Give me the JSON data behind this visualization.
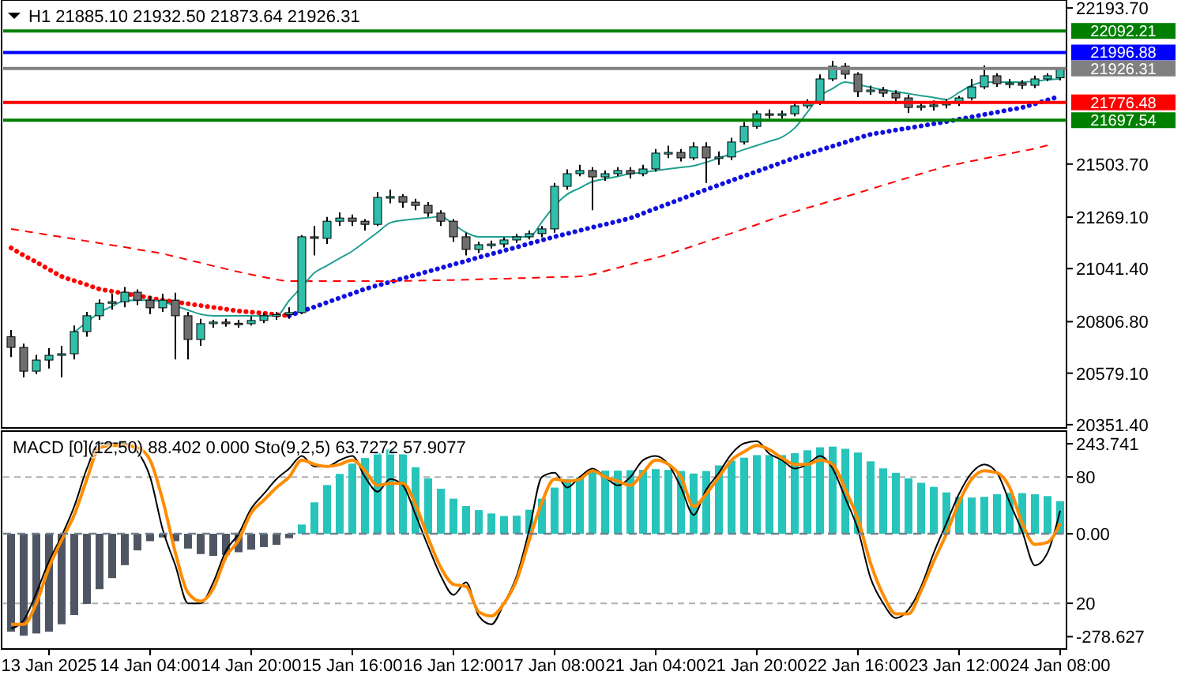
{
  "chart_data": [
    {
      "type": "candlestick",
      "title": "H1  21885.10 21932.50 21873.64 21926.31",
      "categories": [
        null,
        null,
        null,
        null,
        null,
        null,
        null,
        null,
        null,
        null,
        null,
        null,
        null,
        null,
        null,
        null,
        null,
        null,
        null,
        null,
        null,
        null,
        null,
        null,
        null,
        null,
        null,
        null,
        null,
        null,
        null,
        null,
        null,
        null,
        null,
        null,
        null,
        null,
        null,
        null,
        null,
        null,
        null,
        null,
        null,
        null,
        null,
        null,
        null,
        null,
        null,
        null,
        null,
        null,
        null,
        null,
        null,
        null,
        null,
        null,
        null,
        null,
        null,
        null,
        null,
        null,
        null,
        null,
        null,
        null,
        null,
        null,
        null,
        null,
        null,
        null,
        null,
        null,
        null,
        null,
        null,
        null,
        null,
        null
      ],
      "ohlc": [
        [
          20740,
          20770,
          20650,
          20693
        ],
        [
          20693,
          20710,
          20560,
          20588
        ],
        [
          20588,
          20660,
          20575,
          20637
        ],
        [
          20637,
          20690,
          20600,
          20658
        ],
        [
          20658,
          20700,
          20560,
          20665
        ],
        [
          20665,
          20790,
          20640,
          20763
        ],
        [
          20763,
          20850,
          20740,
          20833
        ],
        [
          20833,
          20905,
          20815,
          20888
        ],
        [
          20888,
          20930,
          20860,
          20895
        ],
        [
          20895,
          20960,
          20870,
          20937
        ],
        [
          20937,
          20950,
          20880,
          20902
        ],
        [
          20902,
          20920,
          20840,
          20868
        ],
        [
          20868,
          20930,
          20850,
          20902
        ],
        [
          20902,
          20935,
          20640,
          20833
        ],
        [
          20833,
          20850,
          20640,
          20728
        ],
        [
          20728,
          20820,
          20700,
          20798
        ],
        [
          20798,
          20815,
          20780,
          20805
        ],
        [
          20805,
          20820,
          20785,
          20800
        ],
        [
          20800,
          20815,
          20780,
          20798
        ],
        [
          20798,
          20830,
          20790,
          20812
        ],
        [
          20812,
          20845,
          20800,
          20833
        ],
        [
          20833,
          20850,
          20815,
          20838
        ],
        [
          20838,
          20870,
          20820,
          20847
        ],
        [
          20847,
          21190,
          20840,
          21182
        ],
        [
          21182,
          21230,
          21100,
          21175
        ],
        [
          21175,
          21270,
          21150,
          21251
        ],
        [
          21251,
          21290,
          21230,
          21265
        ],
        [
          21265,
          21280,
          21230,
          21251
        ],
        [
          21251,
          21260,
          21210,
          21237
        ],
        [
          21237,
          21380,
          21230,
          21356
        ],
        [
          21356,
          21390,
          21330,
          21360
        ],
        [
          21360,
          21370,
          21310,
          21335
        ],
        [
          21335,
          21350,
          21300,
          21321
        ],
        [
          21321,
          21335,
          21270,
          21287
        ],
        [
          21287,
          21300,
          21230,
          21251
        ],
        [
          21251,
          21260,
          21160,
          21182
        ],
        [
          21182,
          21200,
          21100,
          21126
        ],
        [
          21126,
          21160,
          21110,
          21147
        ],
        [
          21147,
          21165,
          21130,
          21150
        ],
        [
          21150,
          21180,
          21135,
          21168
        ],
        [
          21168,
          21195,
          21155,
          21182
        ],
        [
          21182,
          21210,
          21170,
          21196
        ],
        [
          21196,
          21230,
          21180,
          21217
        ],
        [
          21217,
          21420,
          21200,
          21405
        ],
        [
          21405,
          21480,
          21390,
          21461
        ],
        [
          21461,
          21500,
          21450,
          21475
        ],
        [
          21475,
          21490,
          21300,
          21447
        ],
        [
          21447,
          21475,
          21430,
          21461
        ],
        [
          21461,
          21490,
          21450,
          21475
        ],
        [
          21475,
          21490,
          21440,
          21461
        ],
        [
          21461,
          21500,
          21450,
          21482
        ],
        [
          21482,
          21570,
          21470,
          21552
        ],
        [
          21552,
          21585,
          21530,
          21555
        ],
        [
          21555,
          21570,
          21515,
          21531
        ],
        [
          21531,
          21600,
          21520,
          21580
        ],
        [
          21580,
          21600,
          21420,
          21531
        ],
        [
          21531,
          21560,
          21500,
          21535
        ],
        [
          21535,
          21620,
          21520,
          21601
        ],
        [
          21601,
          21690,
          21590,
          21670
        ],
        [
          21670,
          21740,
          21660,
          21726
        ],
        [
          21726,
          21745,
          21705,
          21719
        ],
        [
          21719,
          21740,
          21705,
          21726
        ],
        [
          21726,
          21775,
          21715,
          21761
        ],
        [
          21761,
          21790,
          21750,
          21775
        ],
        [
          21775,
          21900,
          21765,
          21880
        ],
        [
          21880,
          21960,
          21870,
          21936
        ],
        [
          21936,
          21950,
          21880,
          21901
        ],
        [
          21901,
          21910,
          21800,
          21824
        ],
        [
          21824,
          21850,
          21810,
          21831
        ],
        [
          21831,
          21845,
          21800,
          21817
        ],
        [
          21817,
          21830,
          21770,
          21796
        ],
        [
          21796,
          21810,
          21730,
          21754
        ],
        [
          21754,
          21780,
          21740,
          21761
        ],
        [
          21761,
          21785,
          21740,
          21765
        ],
        [
          21765,
          21790,
          21750,
          21775
        ],
        [
          21775,
          21805,
          21760,
          21796
        ],
        [
          21796,
          21880,
          21785,
          21845
        ],
        [
          21845,
          21940,
          21835,
          21894
        ],
        [
          21894,
          21905,
          21845,
          21859
        ],
        [
          21859,
          21880,
          21840,
          21862
        ],
        [
          21862,
          21875,
          21835,
          21852
        ],
        [
          21852,
          21895,
          21840,
          21880
        ],
        [
          21880,
          21905,
          21870,
          21894
        ],
        [
          21885.1,
          21932.5,
          21873.64,
          21926.31
        ]
      ],
      "colors": [
        "#6e6e6e",
        "#6e6e6e",
        "#2fbfab",
        "#2fbfab",
        "#2fbfab",
        "#2fbfab",
        "#2fbfab",
        "#2fbfab",
        "#2fbfab",
        "#2fbfab",
        "#6e6e6e",
        "#6e6e6e",
        "#2fbfab",
        "#6e6e6e",
        "#6e6e6e",
        "#2fbfab",
        "#2fbfab",
        "#6e6e6e",
        "#6e6e6e",
        "#2fbfab",
        "#2fbfab",
        "#2fbfab",
        "#2fbfab",
        "#2fbfab",
        "#6e6e6e",
        "#2fbfab",
        "#2fbfab",
        "#6e6e6e",
        "#6e6e6e",
        "#2fbfab",
        "#2fbfab",
        "#6e6e6e",
        "#6e6e6e",
        "#6e6e6e",
        "#6e6e6e",
        "#6e6e6e",
        "#6e6e6e",
        "#2fbfab",
        "#2fbfab",
        "#2fbfab",
        "#2fbfab",
        "#2fbfab",
        "#2fbfab",
        "#2fbfab",
        "#2fbfab",
        "#2fbfab",
        "#6e6e6e",
        "#2fbfab",
        "#2fbfab",
        "#6e6e6e",
        "#2fbfab",
        "#2fbfab",
        "#2fbfab",
        "#6e6e6e",
        "#2fbfab",
        "#6e6e6e",
        "#2fbfab",
        "#2fbfab",
        "#2fbfab",
        "#2fbfab",
        "#6e6e6e",
        "#2fbfab",
        "#2fbfab",
        "#2fbfab",
        "#2fbfab",
        "#2fbfab",
        "#6e6e6e",
        "#6e6e6e",
        "#2fbfab",
        "#6e6e6e",
        "#6e6e6e",
        "#6e6e6e",
        "#2fbfab",
        "#2fbfab",
        "#2fbfab",
        "#2fbfab",
        "#2fbfab",
        "#2fbfab",
        "#6e6e6e",
        "#2fbfab",
        "#6e6e6e",
        "#2fbfab",
        "#2fbfab",
        "#2fbfab"
      ],
      "series": [
        {
          "type": "line",
          "color": "#ff0000",
          "line_style": "dotted",
          "values": [
            21133,
            21100,
            21070,
            21038,
            21007,
            20988,
            20970,
            20951,
            20941,
            20931,
            20922,
            20912,
            20902,
            20894,
            20886,
            20878,
            20870,
            20862,
            20854,
            20849,
            20844,
            20838,
            20833,
            null,
            null,
            null,
            null,
            null,
            null,
            null,
            null,
            null,
            null,
            null,
            null,
            null,
            null,
            null,
            null,
            null,
            null,
            null,
            null,
            null,
            null,
            null,
            null,
            null,
            null,
            null,
            null,
            null,
            null,
            null,
            null,
            null,
            null,
            null,
            null,
            null,
            null,
            null,
            null,
            null,
            null,
            null,
            null,
            null,
            null,
            null,
            null,
            null,
            null,
            null,
            null,
            null,
            null,
            null,
            null,
            null,
            null,
            null,
            null,
            null
          ]
        },
        {
          "type": "line",
          "color": "#1010e0",
          "line_style": "dotted",
          "values": [
            null,
            null,
            null,
            null,
            null,
            null,
            null,
            null,
            null,
            null,
            null,
            null,
            null,
            null,
            null,
            null,
            null,
            null,
            null,
            null,
            null,
            null,
            20833,
            20853,
            20872,
            20892,
            20912,
            20931,
            20951,
            20967,
            20982,
            20998,
            21013,
            21029,
            21044,
            21060,
            21075,
            21091,
            21106,
            21121,
            21136,
            21152,
            21167,
            21182,
            21196,
            21210,
            21224,
            21237,
            21251,
            21265,
            21286,
            21307,
            21328,
            21349,
            21370,
            21391,
            21411,
            21431,
            21451,
            21471,
            21491,
            21511,
            21531,
            21548,
            21566,
            21583,
            21600,
            21618,
            21635,
            21644,
            21654,
            21663,
            21672,
            21682,
            21691,
            21702,
            21712,
            21723,
            21733,
            21744,
            21754,
            21770,
            21787,
            21803
          ]
        },
        {
          "type": "line",
          "color": "#ff0000",
          "line_style": "dashed",
          "values": [
            21217,
            21208,
            21199,
            21190,
            21181,
            21172,
            21163,
            21154,
            21145,
            21136,
            21126,
            21117,
            21107,
            21094,
            21080,
            21067,
            21053,
            21040,
            21027,
            21015,
            21004,
            20993,
            20986,
            20986,
            20986,
            20986,
            20986,
            20986,
            20986,
            20986,
            20986,
            20987,
            20988,
            20989,
            20990,
            20991,
            20992,
            20994,
            20996,
            20997,
            20999,
            21000,
            21002,
            21004,
            21005,
            21007,
            21016,
            21031,
            21045,
            21060,
            21075,
            21089,
            21105,
            21124,
            21142,
            21161,
            21179,
            21198,
            21217,
            21236,
            21256,
            21275,
            21293,
            21310,
            21326,
            21343,
            21359,
            21376,
            21393,
            21410,
            21427,
            21444,
            21461,
            21478,
            21494,
            21505,
            21517,
            21528,
            21539,
            21550,
            21561,
            21572,
            21587,
            null
          ]
        },
        {
          "type": "line",
          "color": "#20a090",
          "line_style": "solid",
          "values": [
            null,
            null,
            null,
            null,
            null,
            20760,
            20805,
            20847,
            20875,
            20900,
            20902,
            20902,
            20895,
            20877,
            20858,
            20840,
            20833,
            20833,
            20833,
            20833,
            20833,
            20833,
            20900,
            20960,
            21023,
            21055,
            21087,
            21119,
            21160,
            21202,
            21244,
            21255,
            21261,
            21266,
            21272,
            21237,
            21201,
            21182,
            21182,
            21182,
            21182,
            21182,
            21248,
            21319,
            21370,
            21398,
            21426,
            21438,
            21449,
            21461,
            21467,
            21475,
            21482,
            21489,
            21496,
            21512,
            21530,
            21549,
            21568,
            21586,
            21604,
            21623,
            21663,
            21733,
            21803,
            21838,
            21866,
            21855,
            21843,
            21831,
            21824,
            21815,
            21806,
            21798,
            21789,
            21820,
            21851,
            21866,
            21866,
            21866,
            21866,
            21870,
            21876,
            21880
          ]
        }
      ],
      "ylim": [
        20337,
        22229
      ],
      "yticks": [
        {
          "value": 22193.7,
          "label": "22193.70"
        },
        {
          "value": 21503.7,
          "label": "21503.70"
        },
        {
          "value": 21269.1,
          "label": "21269.10"
        },
        {
          "value": 21041.4,
          "label": "21041.40"
        },
        {
          "value": 20806.8,
          "label": "20806.80"
        },
        {
          "value": 20579.1,
          "label": "20579.10"
        },
        {
          "value": 20351.4,
          "label": "20351.40"
        }
      ],
      "tick_labels": "y",
      "ref_lines": [
        {
          "axis": "y",
          "value": 22092.21,
          "label": "22092.21",
          "color": "#008000"
        },
        {
          "axis": "y",
          "value": 21996.88,
          "label": "21996.88",
          "color": "#0000ff"
        },
        {
          "axis": "y",
          "value": 21926.31,
          "label": "21926.31",
          "color": "#808080"
        },
        {
          "axis": "y",
          "value": 21776.48,
          "label": "21776.48",
          "color": "#ff0000"
        },
        {
          "axis": "y",
          "value": 21697.54,
          "label": "21697.54",
          "color": "#008000"
        }
      ]
    },
    {
      "type": "bar",
      "title": "MACD [0](12,50) 88.402 0.000  Sto(9,2,5) 63.7272 57.9077",
      "categories": [
        null,
        null,
        null,
        "13 Jan 2025",
        null,
        null,
        null,
        null,
        null,
        null,
        null,
        "14 Jan 04:00",
        null,
        null,
        null,
        null,
        null,
        null,
        null,
        "14 Jan 20:00",
        null,
        null,
        null,
        null,
        null,
        null,
        null,
        "15 Jan 16:00",
        null,
        null,
        null,
        null,
        null,
        null,
        null,
        "16 Jan 12:00",
        null,
        null,
        null,
        null,
        null,
        null,
        null,
        "17 Jan 08:00",
        null,
        null,
        null,
        null,
        null,
        null,
        null,
        "21 Jan 04:00",
        null,
        null,
        null,
        null,
        null,
        null,
        null,
        "21 Jan 20:00",
        null,
        null,
        null,
        null,
        null,
        null,
        null,
        "22 Jan 16:00",
        null,
        null,
        null,
        null,
        null,
        null,
        null,
        "23 Jan 12:00",
        null,
        null,
        null,
        null,
        null,
        null,
        null,
        "24 Jan 08:00"
      ],
      "series": [
        {
          "type": "bar",
          "values": [
            -265,
            -276,
            -270,
            -265,
            -245,
            -220,
            -190,
            -150,
            -120,
            -85,
            -45,
            -20,
            -10,
            -20,
            -40,
            -55,
            -60,
            -57,
            -50,
            -43,
            -36,
            -30,
            -12,
            25,
            85,
            132,
            162,
            190,
            205,
            218,
            228,
            215,
            180,
            150,
            122,
            95,
            75,
            64,
            55,
            48,
            49,
            65,
            95,
            125,
            148,
            153,
            168,
            171,
            171,
            172,
            173,
            175,
            173,
            170,
            163,
            170,
            185,
            198,
            206,
            213,
            213,
            213,
            218,
            226,
            234,
            236,
            230,
            220,
            196,
            177,
            165,
            150,
            138,
            127,
            112,
            100,
            98,
            100,
            107,
            111,
            110,
            107,
            102,
            88
          ],
          "colors": [
            "#4f5663",
            "#4f5663",
            "#4f5663",
            "#4f5663",
            "#4f5663",
            "#4f5663",
            "#4f5663",
            "#4f5663",
            "#4f5663",
            "#4f5663",
            "#4f5663",
            "#4f5663",
            "#4f5663",
            "#4f5663",
            "#4f5663",
            "#4f5663",
            "#4f5663",
            "#4f5663",
            "#4f5663",
            "#4f5663",
            "#4f5663",
            "#4f5663",
            "#4f5663",
            "#26c4bb",
            "#26c4bb",
            "#26c4bb",
            "#26c4bb",
            "#26c4bb",
            "#26c4bb",
            "#26c4bb",
            "#26c4bb",
            "#26c4bb",
            "#26c4bb",
            "#26c4bb",
            "#26c4bb",
            "#26c4bb",
            "#26c4bb",
            "#26c4bb",
            "#26c4bb",
            "#26c4bb",
            "#26c4bb",
            "#26c4bb",
            "#26c4bb",
            "#26c4bb",
            "#26c4bb",
            "#26c4bb",
            "#26c4bb",
            "#26c4bb",
            "#26c4bb",
            "#26c4bb",
            "#26c4bb",
            "#26c4bb",
            "#26c4bb",
            "#26c4bb",
            "#26c4bb",
            "#26c4bb",
            "#26c4bb",
            "#26c4bb",
            "#26c4bb",
            "#26c4bb",
            "#26c4bb",
            "#26c4bb",
            "#26c4bb",
            "#26c4bb",
            "#26c4bb",
            "#26c4bb",
            "#26c4bb",
            "#26c4bb",
            "#26c4bb",
            "#26c4bb",
            "#26c4bb",
            "#26c4bb",
            "#26c4bb",
            "#26c4bb",
            "#26c4bb",
            "#26c4bb",
            "#26c4bb",
            "#26c4bb",
            "#26c4bb",
            "#26c4bb",
            "#26c4bb",
            "#26c4bb",
            "#26c4bb",
            "#26c4bb"
          ]
        },
        {
          "type": "line",
          "axis": "y2",
          "color": "#000000",
          "line_style": "solid",
          "values": [
            8,
            12,
            25,
            40,
            52,
            66,
            84,
            96,
            96,
            96,
            92,
            80,
            55,
            38,
            20,
            20,
            30,
            45,
            53,
            65,
            72,
            79,
            84,
            90,
            85,
            85,
            88,
            90,
            80,
            73,
            79,
            76,
            62,
            47,
            33,
            24,
            30,
            14,
            10,
            20,
            33,
            55,
            80,
            82,
            75,
            80,
            84,
            80,
            76,
            80,
            88,
            90,
            86,
            75,
            62,
            74,
            82,
            91,
            96,
            97,
            91,
            88,
            84,
            86,
            90,
            84,
            70,
            55,
            32,
            20,
            13,
            17,
            28,
            44,
            58,
            72,
            82,
            86,
            82,
            68,
            54,
            38,
            44,
            64
          ]
        },
        {
          "type": "line",
          "axis": "y2",
          "color": "#ff8c00",
          "line_style": "solid",
          "values": [
            10,
            10,
            20,
            37,
            50,
            62,
            79,
            94,
            95,
            95,
            94,
            88,
            69,
            44,
            25,
            21,
            27,
            42,
            50,
            63,
            69,
            75,
            80,
            88,
            86,
            85,
            86,
            88,
            83,
            76,
            77,
            77,
            67,
            51,
            37,
            29,
            28,
            16,
            14,
            20,
            31,
            50,
            68,
            79,
            78,
            79,
            83,
            80,
            78,
            76,
            82,
            88,
            86,
            80,
            66,
            72,
            80,
            88,
            92,
            95,
            93,
            89,
            86,
            86,
            88,
            86,
            74,
            60,
            39,
            24,
            15,
            15,
            26,
            40,
            53,
            68,
            79,
            83,
            82,
            75,
            58,
            48,
            49,
            58
          ]
        }
      ],
      "ylim": [
        -312,
        278
      ],
      "yticks": [
        243.741,
        {
          "value": 0,
          "label": "0.00"
        },
        -278.627
      ],
      "y2lim": [
        -1.7,
        101.8
      ],
      "y2ticks": [
        80,
        20
      ],
      "grid": "y2",
      "ref_lines": [
        {
          "axis": "y",
          "value": 0,
          "color": "#708090",
          "line_style": "dashed"
        }
      ]
    }
  ]
}
